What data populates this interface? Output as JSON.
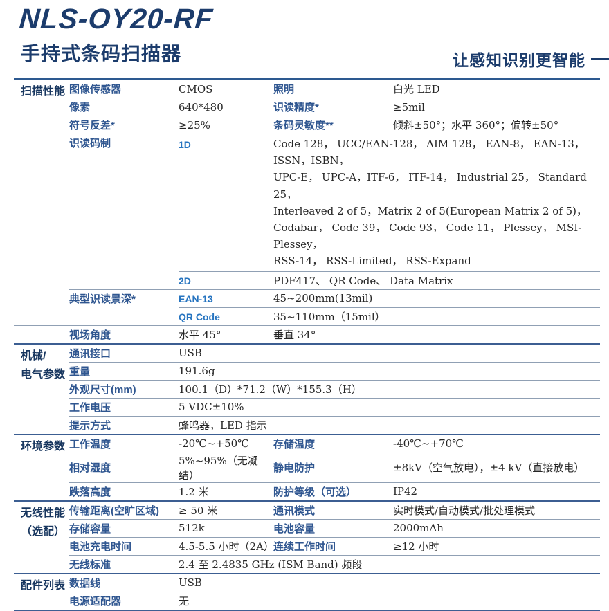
{
  "header": {
    "model": "NLS-OY20-RF",
    "subtitle": "手持式条码扫描器",
    "slogan": "让感知识别更智能"
  },
  "colors": {
    "title_navy": "#1c3c6c",
    "section_navy": "#17365f",
    "label_blue": "#2f5690",
    "key_blue": "#2674c0",
    "value_dark": "#262626",
    "rule_dark": "#2d5990",
    "row_line": "#90a0b4"
  },
  "table": {
    "sections": [
      {
        "title_lines": [
          "扫描性能"
        ],
        "rows": [
          {
            "div": "body",
            "cells": [
              {
                "t": "label",
                "col": 1,
                "text": "图像传感器"
              },
              {
                "t": "value",
                "col": 2,
                "text": "CMOS"
              },
              {
                "t": "label",
                "col": 3,
                "text": "照明"
              },
              {
                "t": "value",
                "col": 4,
                "text": "白光 LED"
              }
            ]
          },
          {
            "div": "body",
            "cells": [
              {
                "t": "label",
                "col": 1,
                "text": "像素"
              },
              {
                "t": "value",
                "col": 2,
                "text": "640*480"
              },
              {
                "t": "label",
                "col": 3,
                "text": "识读精度*"
              },
              {
                "t": "value",
                "col": 4,
                "text": "≥5mil"
              }
            ]
          },
          {
            "div": "body",
            "cells": [
              {
                "t": "label",
                "col": 1,
                "text": "符号反差*"
              },
              {
                "t": "value",
                "col": 2,
                "text": "≥25%"
              },
              {
                "t": "label",
                "col": 3,
                "text": "条码灵敏度**"
              },
              {
                "t": "value",
                "col": 4,
                "text": "倾斜±50°；水平 360°；偏转±50°"
              }
            ]
          },
          {
            "div": "indent",
            "cells": [
              {
                "t": "label",
                "col": 1,
                "text": "识读码制"
              },
              {
                "t": "key",
                "col": 2,
                "text": "1D"
              },
              {
                "t": "value",
                "col": 3,
                "span": 2,
                "lines": [
                  "Code 128， UCC/EAN-128， AIM 128， EAN-8， EAN-13，ISSN，ISBN，",
                  "UPC-E， UPC-A，ITF-6， ITF-14， Industrial 25， Standard 25，",
                  "Interleaved 2 of 5，Matrix 2 of 5(European Matrix 2 of 5)，",
                  "Codabar， Code 39， Code 93， Code 11， Plessey， MSI-Plessey，",
                  "RSS-14， RSS-Limited， RSS-Expand"
                ]
              }
            ]
          },
          {
            "div": "body",
            "cells": [
              {
                "t": "key",
                "col": 2,
                "text": "2D"
              },
              {
                "t": "value",
                "col": 3,
                "span": 2,
                "text": "PDF417、 QR Code、 Data Matrix"
              }
            ]
          },
          {
            "div": "indent",
            "cells": [
              {
                "t": "label",
                "col": 1,
                "text": "典型识读景深*"
              },
              {
                "t": "key",
                "col": 2,
                "text": "EAN-13"
              },
              {
                "t": "value",
                "col": 3,
                "span": 2,
                "text": "45~200mm(13mil)"
              }
            ]
          },
          {
            "div": "full",
            "cells": [
              {
                "t": "key",
                "col": 2,
                "text": "QR Code"
              },
              {
                "t": "value",
                "col": 3,
                "span": 2,
                "text": "35~110mm（15mil）"
              }
            ]
          },
          {
            "div": "section",
            "cells": [
              {
                "t": "label",
                "col": 1,
                "text": "视场角度"
              },
              {
                "t": "value",
                "col": 2,
                "text": "水平 45°"
              },
              {
                "t": "value",
                "col": 3,
                "span": 2,
                "text": "垂直 34°"
              }
            ]
          }
        ]
      },
      {
        "title_lines": [
          "机械/",
          "电气参数"
        ],
        "rows": [
          {
            "div": "body",
            "cells": [
              {
                "t": "label",
                "col": 1,
                "text": "通讯接口"
              },
              {
                "t": "value",
                "col": 2,
                "span": 3,
                "text": "USB"
              }
            ]
          },
          {
            "div": "body",
            "cells": [
              {
                "t": "label",
                "col": 1,
                "text": "重量"
              },
              {
                "t": "value",
                "col": 2,
                "span": 3,
                "text": "191.6g"
              }
            ]
          },
          {
            "div": "body",
            "cells": [
              {
                "t": "label",
                "col": 1,
                "text": "外观尺寸(mm)"
              },
              {
                "t": "value",
                "col": 2,
                "span": 3,
                "text": "100.1（D）*71.2（W）*155.3（H）"
              }
            ]
          },
          {
            "div": "body",
            "cells": [
              {
                "t": "label",
                "col": 1,
                "text": "工作电压"
              },
              {
                "t": "value",
                "col": 2,
                "span": 3,
                "text": "5 VDC±10%"
              }
            ]
          },
          {
            "div": "section",
            "cells": [
              {
                "t": "label",
                "col": 1,
                "text": "提示方式"
              },
              {
                "t": "value",
                "col": 2,
                "span": 3,
                "text": "蜂鸣器，LED 指示"
              }
            ]
          }
        ]
      },
      {
        "title_lines": [
          "环境参数"
        ],
        "rows": [
          {
            "div": "body",
            "cells": [
              {
                "t": "label",
                "col": 1,
                "text": "工作温度"
              },
              {
                "t": "value",
                "col": 2,
                "text": "-20℃~+50℃"
              },
              {
                "t": "label",
                "col": 3,
                "text": "存储温度"
              },
              {
                "t": "value",
                "col": 4,
                "text": "-40℃~+70℃"
              }
            ]
          },
          {
            "div": "body",
            "cells": [
              {
                "t": "label",
                "col": 1,
                "text": "相对湿度"
              },
              {
                "t": "value",
                "col": 2,
                "text": "5%~95%（无凝结）"
              },
              {
                "t": "label",
                "col": 3,
                "text": "静电防护"
              },
              {
                "t": "value",
                "col": 4,
                "text": "±8kV（空气放电），±4 kV（直接放电）"
              }
            ]
          },
          {
            "div": "section",
            "cells": [
              {
                "t": "label",
                "col": 1,
                "text": "跌落高度"
              },
              {
                "t": "value",
                "col": 2,
                "text": "1.2 米"
              },
              {
                "t": "label",
                "col": 3,
                "text": "防护等级（可选）"
              },
              {
                "t": "value",
                "col": 4,
                "text": "IP42"
              }
            ]
          }
        ]
      },
      {
        "title_lines": [
          "无线性能",
          "（选配）"
        ],
        "rows": [
          {
            "div": "body",
            "cells": [
              {
                "t": "label",
                "col": 1,
                "text": "传输距离(空旷区域)"
              },
              {
                "t": "value",
                "col": 2,
                "text": "≥ 50 米"
              },
              {
                "t": "label",
                "col": 3,
                "text": "通讯模式"
              },
              {
                "t": "value",
                "col": 4,
                "text": "实时模式/自动模式/批处理模式"
              }
            ]
          },
          {
            "div": "body",
            "cells": [
              {
                "t": "label",
                "col": 1,
                "text": "存储容量"
              },
              {
                "t": "value",
                "col": 2,
                "text": "512k"
              },
              {
                "t": "label",
                "col": 3,
                "text": "电池容量"
              },
              {
                "t": "value",
                "col": 4,
                "text": "2000mAh"
              }
            ]
          },
          {
            "div": "body",
            "cells": [
              {
                "t": "label",
                "col": 1,
                "text": "电池充电时间"
              },
              {
                "t": "value",
                "col": 2,
                "text": "4.5-5.5 小时（2A）"
              },
              {
                "t": "label",
                "col": 3,
                "text": "连续工作时间"
              },
              {
                "t": "value",
                "col": 4,
                "text": "≥12 小时"
              }
            ]
          },
          {
            "div": "section",
            "cells": [
              {
                "t": "label",
                "col": 1,
                "text": "无线标准"
              },
              {
                "t": "value",
                "col": 2,
                "span": 3,
                "text": "2.4 至 2.4835 GHz (ISM Band) 频段"
              }
            ]
          }
        ]
      },
      {
        "title_lines": [
          "配件列表"
        ],
        "rows": [
          {
            "div": "body",
            "cells": [
              {
                "t": "label",
                "col": 1,
                "text": "数据线"
              },
              {
                "t": "value",
                "col": 2,
                "span": 3,
                "text": "USB"
              }
            ]
          },
          {
            "div": "section",
            "cells": [
              {
                "t": "label",
                "col": 1,
                "text": "电源适配器"
              },
              {
                "t": "value",
                "col": 2,
                "span": 3,
                "text": "无"
              }
            ]
          }
        ]
      }
    ]
  }
}
